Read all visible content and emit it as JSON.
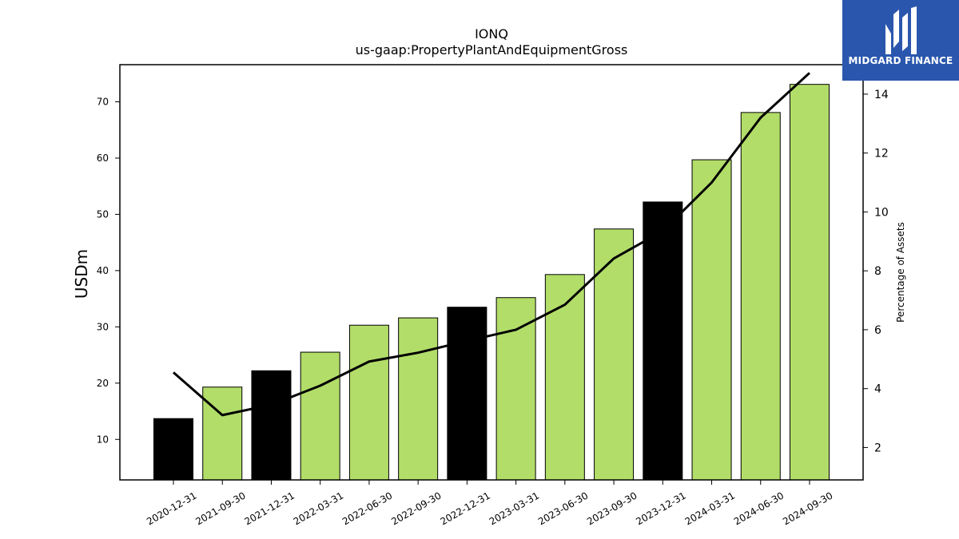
{
  "chart_data": {
    "type": "bar",
    "title": "IONQ",
    "subtitle": "us-gaap:PropertyPlantAndEquipmentGross",
    "ylabel": "USDm",
    "y2label": "Percentage of Assets",
    "categories": [
      "2020-12-31",
      "2021-09-30",
      "2021-12-31",
      "2022-03-31",
      "2022-06-30",
      "2022-09-30",
      "2022-12-31",
      "2023-03-31",
      "2023-06-30",
      "2023-09-30",
      "2023-12-31",
      "2024-03-31",
      "2024-06-30",
      "2024-09-30"
    ],
    "series": [
      {
        "type": "bar",
        "axis": "left",
        "values": [
          13.7,
          19.3,
          22.2,
          25.5,
          30.3,
          31.6,
          33.5,
          35.2,
          39.3,
          47.4,
          52.2,
          59.7,
          68.1,
          73.1
        ],
        "colors": [
          "#000000",
          "#b2dd69",
          "#000000",
          "#b2dd69",
          "#b2dd69",
          "#b2dd69",
          "#000000",
          "#b2dd69",
          "#b2dd69",
          "#b2dd69",
          "#000000",
          "#b2dd69",
          "#b2dd69",
          "#b2dd69"
        ]
      },
      {
        "type": "line",
        "axis": "right",
        "color": "#000000",
        "values": [
          4.55,
          3.1,
          3.45,
          4.1,
          4.92,
          5.22,
          5.62,
          6.0,
          6.85,
          8.42,
          9.35,
          11.0,
          13.2,
          14.72
        ]
      }
    ],
    "ylim": [
      2.8,
      76.6
    ],
    "y_ticks": [
      10,
      20,
      30,
      40,
      50,
      60,
      70
    ],
    "y2lim": [
      0.9,
      15.0
    ],
    "y2_ticks": [
      2,
      4,
      6,
      8,
      10,
      12,
      14
    ],
    "grid": false,
    "legend": "none"
  },
  "logo": {
    "text": "MIDGARD FINANCE",
    "icon": "midgard-m-icon",
    "bg": "#2a57ad"
  }
}
